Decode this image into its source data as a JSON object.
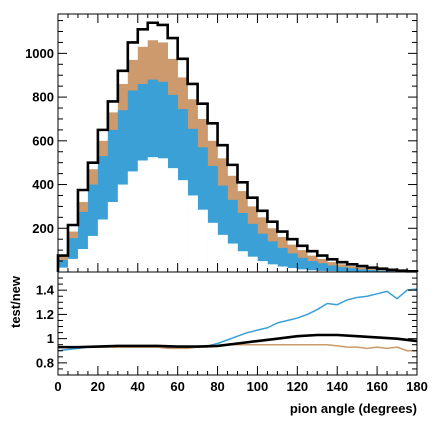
{
  "chart_data": [
    {
      "type": "bar",
      "panel": "top",
      "bin_width": 5,
      "xlim": [
        0,
        180
      ],
      "ylim": [
        0,
        1180
      ],
      "yticks": [
        200,
        400,
        600,
        800,
        1000
      ],
      "x_bin_edges_start": [
        0,
        5,
        10,
        15,
        20,
        25,
        30,
        35,
        40,
        45,
        50,
        55,
        60,
        65,
        70,
        75,
        80,
        85,
        90,
        95,
        100,
        105,
        110,
        115,
        120,
        125,
        130,
        135,
        140,
        145,
        150,
        155,
        160,
        165,
        170,
        175
      ],
      "series": [
        {
          "key": "inner_white",
          "color": "#ffffff",
          "values": [
            20,
            60,
            105,
            165,
            240,
            320,
            400,
            460,
            510,
            525,
            520,
            475,
            420,
            350,
            285,
            225,
            170,
            130,
            95,
            70,
            50,
            35,
            25,
            18,
            12,
            8,
            5,
            4,
            3,
            2,
            1,
            1,
            1,
            0,
            0,
            0
          ]
        },
        {
          "key": "blue_stack",
          "color": "#3aa0d5",
          "values": [
            55,
            155,
            275,
            400,
            530,
            650,
            740,
            830,
            860,
            880,
            870,
            810,
            745,
            655,
            570,
            485,
            395,
            330,
            270,
            220,
            175,
            140,
            110,
            85,
            65,
            50,
            40,
            30,
            22,
            17,
            12,
            9,
            6,
            4,
            2,
            1
          ]
        },
        {
          "key": "tan_stack",
          "color": "#cc9a6c",
          "values": [
            70,
            185,
            320,
            470,
            600,
            730,
            860,
            970,
            1030,
            1060,
            1050,
            975,
            890,
            790,
            700,
            600,
            520,
            440,
            370,
            300,
            250,
            200,
            160,
            125,
            100,
            75,
            60,
            45,
            35,
            27,
            20,
            14,
            10,
            6,
            3,
            1
          ]
        },
        {
          "key": "black_outline",
          "color": "#000000",
          "values": [
            75,
            215,
            375,
            500,
            650,
            780,
            920,
            1050,
            1110,
            1140,
            1130,
            1070,
            975,
            860,
            770,
            680,
            580,
            490,
            410,
            340,
            280,
            230,
            185,
            150,
            120,
            95,
            75,
            58,
            45,
            35,
            27,
            20,
            15,
            10,
            6,
            3
          ]
        }
      ]
    },
    {
      "type": "line",
      "panel": "bottom",
      "ylabel": "test/new",
      "xlabel": "pion angle (degrees)",
      "xlim": [
        0,
        180
      ],
      "ylim": [
        0.7,
        1.55
      ],
      "xticks": [
        0,
        20,
        40,
        60,
        80,
        100,
        120,
        140,
        160,
        180
      ],
      "yticks": [
        0.8,
        1,
        1.2,
        1.4
      ],
      "ytick_labels": [
        "0.8",
        "1",
        "1.2",
        "1.4"
      ],
      "series": [
        {
          "key": "blue_ratio",
          "color": "#3aa0d5",
          "x": [
            0,
            5,
            10,
            15,
            20,
            25,
            30,
            35,
            40,
            45,
            50,
            55,
            60,
            65,
            70,
            75,
            80,
            85,
            90,
            95,
            100,
            105,
            110,
            115,
            120,
            125,
            130,
            135,
            140,
            145,
            150,
            155,
            160,
            165,
            170,
            175,
            180
          ],
          "y": [
            0.9,
            0.91,
            0.92,
            0.93,
            0.93,
            0.94,
            0.94,
            0.94,
            0.94,
            0.94,
            0.94,
            0.93,
            0.93,
            0.93,
            0.93,
            0.94,
            0.96,
            0.99,
            1.02,
            1.05,
            1.07,
            1.09,
            1.13,
            1.15,
            1.17,
            1.2,
            1.24,
            1.29,
            1.28,
            1.32,
            1.34,
            1.35,
            1.37,
            1.39,
            1.33,
            1.4,
            1.41
          ]
        },
        {
          "key": "tan_ratio",
          "color": "#cc9a6c",
          "x": [
            0,
            5,
            10,
            15,
            20,
            25,
            30,
            35,
            40,
            45,
            50,
            55,
            60,
            65,
            70,
            75,
            80,
            85,
            90,
            95,
            100,
            105,
            110,
            115,
            120,
            125,
            130,
            135,
            140,
            145,
            150,
            155,
            160,
            165,
            170,
            175,
            180
          ],
          "y": [
            0.93,
            0.93,
            0.93,
            0.93,
            0.93,
            0.93,
            0.93,
            0.93,
            0.93,
            0.93,
            0.93,
            0.92,
            0.92,
            0.92,
            0.93,
            0.93,
            0.94,
            0.95,
            0.95,
            0.95,
            0.95,
            0.95,
            0.95,
            0.95,
            0.95,
            0.95,
            0.95,
            0.95,
            0.94,
            0.93,
            0.93,
            0.92,
            0.93,
            0.92,
            0.93,
            0.9,
            0.9
          ]
        },
        {
          "key": "black_ratio",
          "color": "#000000",
          "x": [
            0,
            10,
            20,
            30,
            40,
            50,
            60,
            70,
            80,
            90,
            100,
            110,
            120,
            130,
            140,
            150,
            160,
            170,
            180
          ],
          "y": [
            0.93,
            0.93,
            0.935,
            0.94,
            0.94,
            0.94,
            0.935,
            0.935,
            0.94,
            0.96,
            0.98,
            1.0,
            1.02,
            1.03,
            1.03,
            1.02,
            1.01,
            1.0,
            0.98
          ]
        }
      ]
    }
  ]
}
